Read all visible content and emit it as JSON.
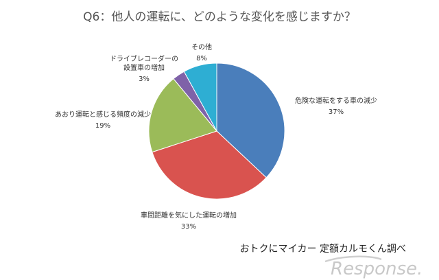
{
  "chart_data": {
    "type": "pie",
    "title": "Q6：他人の運転に、どのような変化を感じますか？",
    "slices": [
      {
        "label": "危険な運転をする車の減少",
        "value": 37,
        "display": "37%",
        "color": "#4a7ebb"
      },
      {
        "label": "車間距離を気にした運転の増加",
        "value": 33,
        "display": "33%",
        "color": "#d9534f"
      },
      {
        "label": "あおり運転と感じる頻度の減少",
        "value": 19,
        "display": "19%",
        "color": "#9bbb59"
      },
      {
        "label": [
          "ドライブレコーダーの",
          "設置車の増加"
        ],
        "value": 3,
        "display": "3%",
        "color": "#7f62a8"
      },
      {
        "label": "その他",
        "value": 8,
        "display": "8%",
        "color": "#2eaed3"
      }
    ],
    "start_angle": 0,
    "direction": "clockwise"
  },
  "credit": "おトクにマイカー 定額カルモくん調べ",
  "logo": "Response."
}
